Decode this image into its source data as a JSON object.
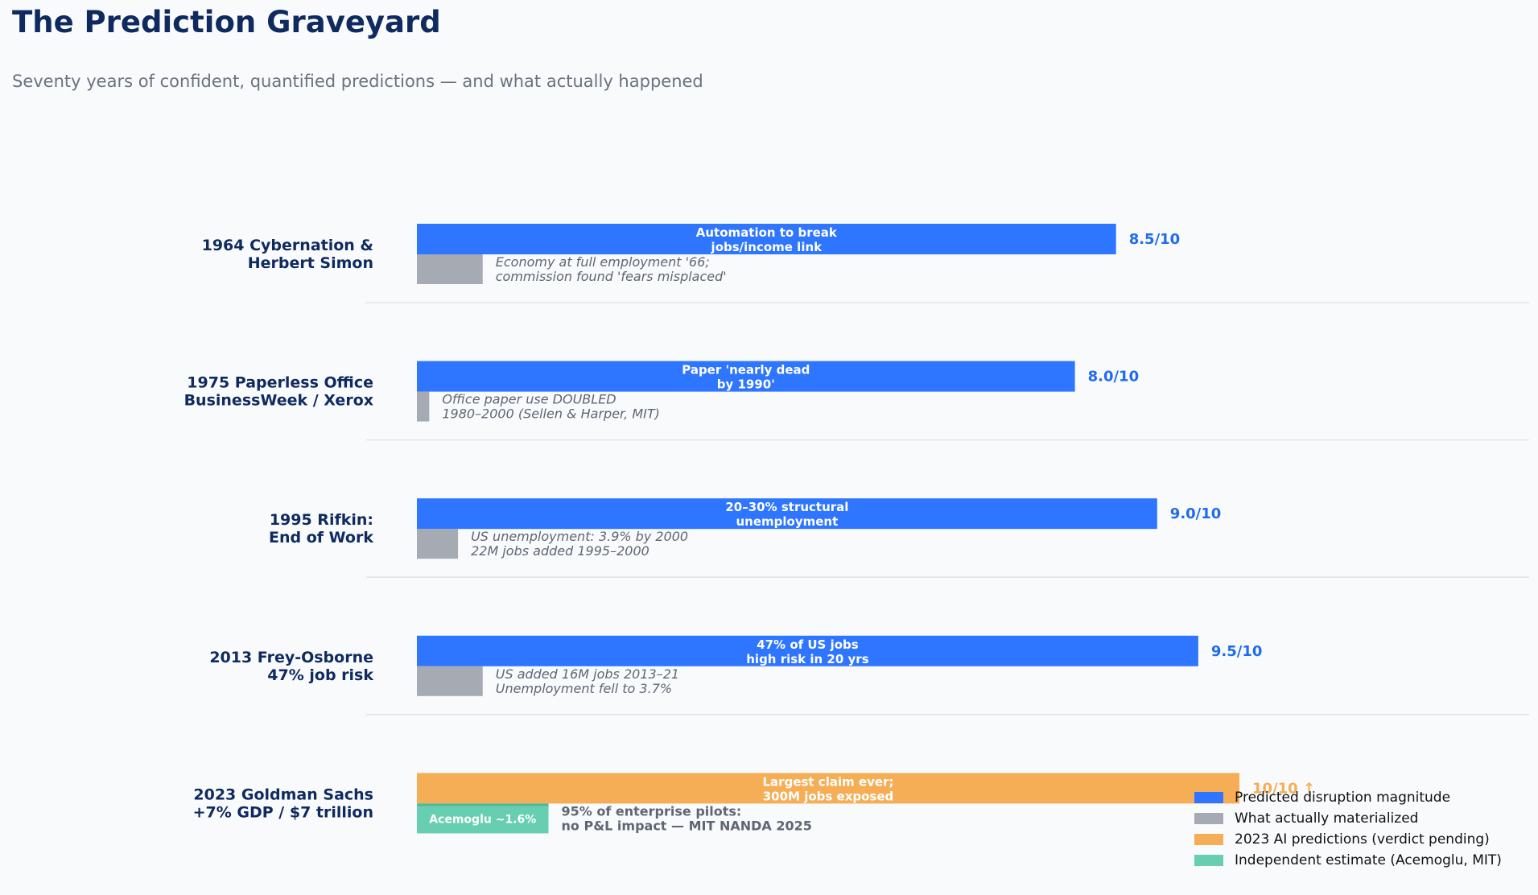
{
  "title": "The Prediction Graveyard",
  "subtitle": "Seventy years of confident, quantified predictions — and what actually happened",
  "colors": {
    "predicted": "#2e75ff",
    "actual": "#a5aab3",
    "pending": "#f5ae56",
    "independent": "#68ceb1",
    "score_blue": "#1f6bf0",
    "score_orange": "#f5ae56",
    "green_text": "#1eb38a"
  },
  "legend": [
    {
      "label": "Predicted disruption magnitude",
      "color": "#2e75ff"
    },
    {
      "label": "What actually materialized",
      "color": "#a5aab3"
    },
    {
      "label": "2023 AI predictions (verdict pending)",
      "color": "#f5ae56"
    },
    {
      "label": "Independent estimate (Acemoglu, MIT)",
      "color": "#68ceb1"
    }
  ],
  "chart_data": {
    "type": "bar",
    "orientation": "horizontal",
    "xlim": [
      0,
      10
    ],
    "grid": false,
    "legend_position": "bottom-right",
    "rows": [
      {
        "label": [
          "1964  Cybernation &",
          "Herbert Simon"
        ],
        "predicted": 8.5,
        "predicted_text": [
          "Automation to break",
          "jobs/income link"
        ],
        "score": "8.5/10",
        "actual": 0.8,
        "actual_text": [
          "Economy at full employment '66;",
          "commission found 'fears misplaced'"
        ],
        "kind": "historic"
      },
      {
        "label": [
          "1975  Paperless Office",
          "BusinessWeek / Xerox"
        ],
        "predicted": 8.0,
        "predicted_text": [
          "Paper 'nearly dead",
          "by 1990'"
        ],
        "score": "8.0/10",
        "actual": 0.15,
        "actual_text": [
          "Office paper use DOUBLED",
          "1980–2000  (Sellen & Harper, MIT)"
        ],
        "kind": "historic"
      },
      {
        "label": [
          "1995  Rifkin:",
          "End of Work"
        ],
        "predicted": 9.0,
        "predicted_text": [
          "20–30% structural",
          "unemployment"
        ],
        "score": "9.0/10",
        "actual": 0.5,
        "actual_text": [
          "US unemployment: 3.9% by 2000",
          "22M jobs added 1995–2000"
        ],
        "kind": "historic"
      },
      {
        "label": [
          "2013  Frey-Osborne",
          "47% job risk"
        ],
        "predicted": 9.5,
        "predicted_text": [
          "47% of US jobs",
          "high risk in 20 yrs"
        ],
        "score": "9.5/10",
        "actual": 0.8,
        "actual_text": [
          "US added 16M jobs 2013–21",
          "Unemployment fell to 3.7%"
        ],
        "kind": "historic"
      },
      {
        "label": [
          "2023  Goldman Sachs",
          "+7% GDP / $7 trillion"
        ],
        "predicted": 10.0,
        "predicted_text": [
          "Largest claim ever;",
          "300M jobs exposed"
        ],
        "score": "10/10 ↑",
        "actual": 1.6,
        "actual_bar_label": "Acemoglu ~1.6%",
        "actual_text": [
          "95% of enterprise pilots:",
          "no P&L impact  —  MIT NANDA 2025"
        ],
        "kind": "pending"
      }
    ]
  }
}
